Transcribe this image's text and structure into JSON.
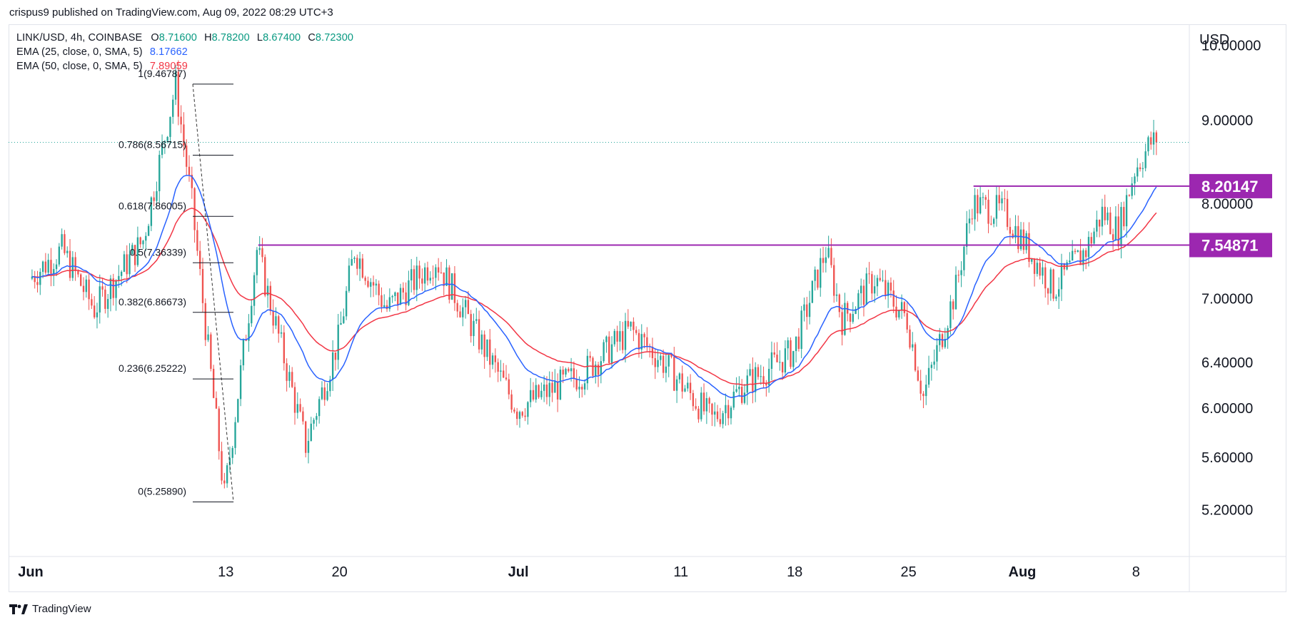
{
  "attribution": "crispus9 published on TradingView.com, Aug 09, 2022 08:29 UTC+3",
  "footer": {
    "brand": "TradingView"
  },
  "legend": {
    "symbol": "LINK/USD, 4h, COINBASE",
    "o_label": "O",
    "o_value": "8.71600",
    "h_label": "H",
    "h_value": "8.78200",
    "l_label": "L",
    "l_value": "8.67400",
    "c_label": "C",
    "c_value": "8.72300",
    "ema25_label": "EMA (25, close, 0, SMA, 5)",
    "ema25_value": "8.17662",
    "ema50_label": "EMA (50, close, 0, SMA, 5)",
    "ema50_value": "7.89059"
  },
  "colors": {
    "up": "#26a69a",
    "down": "#ef5350",
    "ema25": "#2962ff",
    "ema50": "#f23645",
    "level": "#9c27b0",
    "text": "#131722",
    "last_price_line": "#26a69a"
  },
  "chart_data": {
    "type": "candlestick",
    "symbol": "LINK/USD",
    "timeframe": "4h",
    "exchange": "COINBASE",
    "y_axis_label": "USD",
    "y_scale": "log",
    "ylim": [
      4.87,
      10.3
    ],
    "y_ticks": [
      "10.00000",
      "9.00000",
      "8.00000",
      "7.00000",
      "6.40000",
      "6.00000",
      "5.60000",
      "5.20000"
    ],
    "x_ticks": [
      "Jun",
      "13",
      "20",
      "Jul",
      "11",
      "18",
      "25",
      "Aug",
      "8"
    ],
    "last_price": 8.723,
    "levels": [
      {
        "label": "8.20147",
        "value": 8.20147,
        "from": "Jul 29"
      },
      {
        "label": "7.54871",
        "value": 7.54871,
        "from": "Jun 15"
      }
    ],
    "fibonacci": [
      {
        "label": "1(9.46787)",
        "value": 9.46787
      },
      {
        "label": "0.786(8.56715)",
        "value": 8.56715
      },
      {
        "label": "0.618(7.86005)",
        "value": 7.86005
      },
      {
        "label": "0.5(7.36339)",
        "value": 7.36339
      },
      {
        "label": "0.382(6.86673)",
        "value": 6.86673
      },
      {
        "label": "0.236(6.25222)",
        "value": 6.25222
      },
      {
        "label": "0(5.25890)",
        "value": 5.2589
      }
    ],
    "trend_anchor_points": [
      {
        "date": "Jun 01",
        "close": 7.2
      },
      {
        "date": "Jun 03",
        "close": 7.5
      },
      {
        "date": "Jun 05",
        "close": 6.9
      },
      {
        "date": "Jun 08",
        "close": 7.6
      },
      {
        "date": "Jun 10",
        "close": 9.46
      },
      {
        "date": "Jun 11",
        "close": 8.0
      },
      {
        "date": "Jun 13",
        "close": 5.3
      },
      {
        "date": "Jun 15",
        "close": 7.5
      },
      {
        "date": "Jun 18",
        "close": 5.7
      },
      {
        "date": "Jun 20",
        "close": 6.6
      },
      {
        "date": "Jun 21",
        "close": 7.5
      },
      {
        "date": "Jun 23",
        "close": 6.9
      },
      {
        "date": "Jun 26",
        "close": 7.4
      },
      {
        "date": "Jun 28",
        "close": 6.8
      },
      {
        "date": "Jul 01",
        "close": 6.0
      },
      {
        "date": "Jul 05",
        "close": 6.3
      },
      {
        "date": "Jul 08",
        "close": 6.7
      },
      {
        "date": "Jul 10",
        "close": 6.4
      },
      {
        "date": "Jul 13",
        "close": 5.9
      },
      {
        "date": "Jul 15",
        "close": 6.2
      },
      {
        "date": "Jul 18",
        "close": 6.5
      },
      {
        "date": "Jul 20",
        "close": 7.5
      },
      {
        "date": "Jul 21",
        "close": 6.8
      },
      {
        "date": "Jul 23",
        "close": 7.2
      },
      {
        "date": "Jul 25",
        "close": 6.8
      },
      {
        "date": "Jul 26",
        "close": 6.1
      },
      {
        "date": "Jul 28",
        "close": 7.1
      },
      {
        "date": "Jul 29",
        "close": 8.0
      },
      {
        "date": "Jul 31",
        "close": 7.9
      },
      {
        "date": "Aug 03",
        "close": 7.1
      },
      {
        "date": "Aug 05",
        "close": 7.5
      },
      {
        "date": "Aug 06",
        "close": 7.9
      },
      {
        "date": "Aug 07",
        "close": 7.7
      },
      {
        "date": "Aug 08",
        "close": 8.4
      },
      {
        "date": "Aug 09",
        "close": 8.72
      }
    ]
  }
}
